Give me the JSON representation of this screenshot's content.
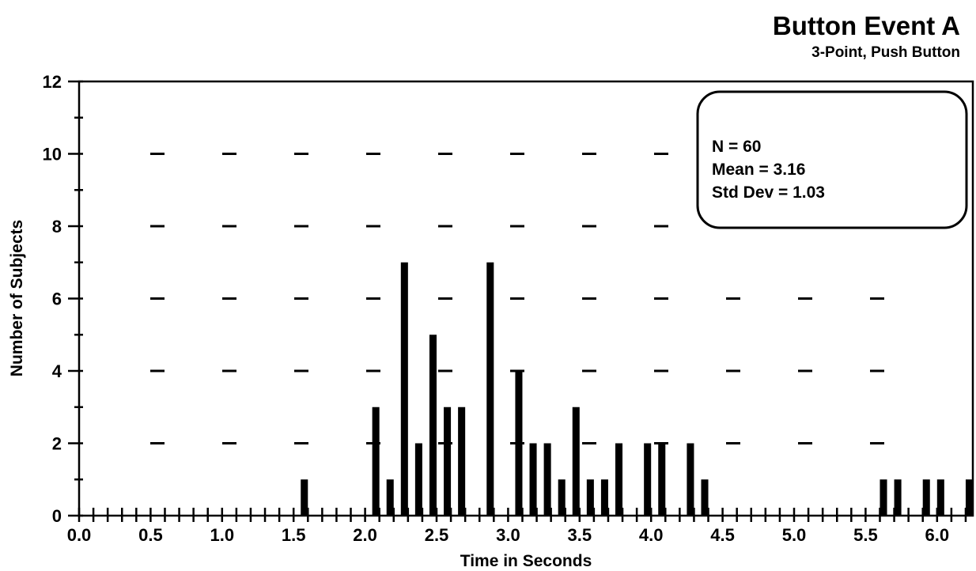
{
  "header": {
    "title": "Button Event A",
    "subtitle": "3-Point, Push Button"
  },
  "stats_box": {
    "n": "N = 60",
    "mean": "Mean = 3.16",
    "std": "Std Dev = 1.03"
  },
  "chart_data": {
    "type": "bar",
    "title": "Button Event A",
    "subtitle": "3-Point, Push Button",
    "xlabel": "Time in Seconds",
    "ylabel": "Number of Subjects",
    "xlim": [
      0.0,
      6.25
    ],
    "ylim": [
      0,
      12
    ],
    "bin_width": 0.05,
    "x_ticks": [
      "0.0",
      "0.5",
      "1.0",
      "1.5",
      "2.0",
      "2.5",
      "3.0",
      "3.5",
      "4.0",
      "4.5",
      "5.0",
      "5.5",
      "6.0"
    ],
    "y_ticks": [
      "0",
      "2",
      "4",
      "6",
      "8",
      "10",
      "12"
    ],
    "grid": "dashed horizontal",
    "legend": "none",
    "colors": {
      "bars": "#000000",
      "background": "#ffffff"
    },
    "x": [
      1.6,
      2.1,
      2.2,
      2.3,
      2.4,
      2.5,
      2.6,
      2.7,
      2.9,
      3.1,
      3.2,
      3.3,
      3.4,
      3.5,
      3.6,
      3.7,
      3.8,
      4.0,
      4.1,
      4.3,
      4.4,
      5.65,
      5.75,
      5.95,
      6.05,
      6.25
    ],
    "values": [
      1,
      3,
      1,
      7,
      2,
      5,
      3,
      3,
      7,
      4,
      2,
      2,
      1,
      3,
      1,
      1,
      2,
      2,
      2,
      2,
      1,
      1,
      1,
      1,
      1,
      1
    ]
  }
}
